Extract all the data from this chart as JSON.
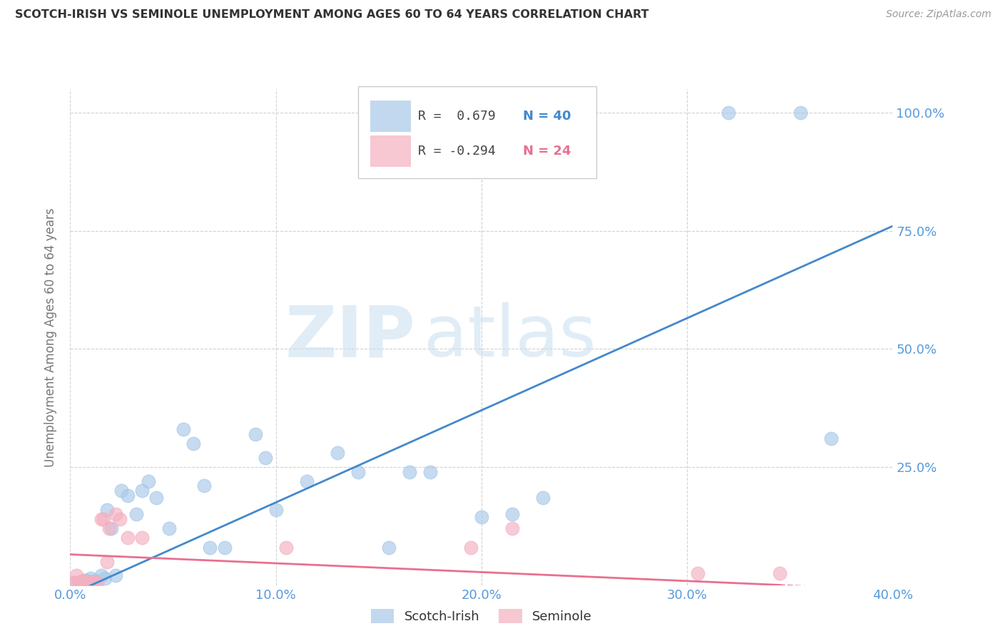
{
  "title": "SCOTCH-IRISH VS SEMINOLE UNEMPLOYMENT AMONG AGES 60 TO 64 YEARS CORRELATION CHART",
  "source": "Source: ZipAtlas.com",
  "ylabel": "Unemployment Among Ages 60 to 64 years",
  "x_min": 0.0,
  "x_max": 0.4,
  "y_min": 0.0,
  "y_max": 1.05,
  "x_ticks": [
    0.0,
    0.1,
    0.2,
    0.3,
    0.4
  ],
  "x_tick_labels": [
    "0.0%",
    "10.0%",
    "20.0%",
    "30.0%",
    "40.0%"
  ],
  "y_ticks": [
    0.25,
    0.5,
    0.75,
    1.0
  ],
  "y_tick_labels": [
    "25.0%",
    "50.0%",
    "75.0%",
    "100.0%"
  ],
  "scotch_irish_color": "#a8c8e8",
  "seminole_color": "#f4b0c0",
  "trend_scotch_color": "#4488cc",
  "trend_seminole_color": "#e87090",
  "legend_r_scotch": "R =  0.679",
  "legend_n_scotch": "N = 40",
  "legend_r_seminole": "R = -0.294",
  "legend_n_seminole": "N = 24",
  "watermark_zip": "ZIP",
  "watermark_atlas": "atlas",
  "scotch_irish_points": [
    [
      0.002,
      0.005
    ],
    [
      0.004,
      0.005
    ],
    [
      0.006,
      0.005
    ],
    [
      0.007,
      0.01
    ],
    [
      0.008,
      0.01
    ],
    [
      0.01,
      0.005
    ],
    [
      0.01,
      0.015
    ],
    [
      0.012,
      0.01
    ],
    [
      0.015,
      0.02
    ],
    [
      0.017,
      0.015
    ],
    [
      0.018,
      0.16
    ],
    [
      0.02,
      0.12
    ],
    [
      0.022,
      0.02
    ],
    [
      0.025,
      0.2
    ],
    [
      0.028,
      0.19
    ],
    [
      0.032,
      0.15
    ],
    [
      0.035,
      0.2
    ],
    [
      0.038,
      0.22
    ],
    [
      0.042,
      0.185
    ],
    [
      0.048,
      0.12
    ],
    [
      0.055,
      0.33
    ],
    [
      0.06,
      0.3
    ],
    [
      0.065,
      0.21
    ],
    [
      0.068,
      0.08
    ],
    [
      0.075,
      0.08
    ],
    [
      0.09,
      0.32
    ],
    [
      0.095,
      0.27
    ],
    [
      0.1,
      0.16
    ],
    [
      0.115,
      0.22
    ],
    [
      0.13,
      0.28
    ],
    [
      0.14,
      0.24
    ],
    [
      0.155,
      0.08
    ],
    [
      0.165,
      0.24
    ],
    [
      0.175,
      0.24
    ],
    [
      0.2,
      0.145
    ],
    [
      0.215,
      0.15
    ],
    [
      0.23,
      0.185
    ],
    [
      0.32,
      1.0
    ],
    [
      0.355,
      1.0
    ],
    [
      0.37,
      0.31
    ]
  ],
  "seminole_points": [
    [
      0.002,
      0.005
    ],
    [
      0.003,
      0.02
    ],
    [
      0.004,
      0.005
    ],
    [
      0.005,
      0.005
    ],
    [
      0.006,
      0.01
    ],
    [
      0.007,
      0.005
    ],
    [
      0.008,
      0.005
    ],
    [
      0.009,
      0.005
    ],
    [
      0.01,
      0.005
    ],
    [
      0.012,
      0.005
    ],
    [
      0.013,
      0.005
    ],
    [
      0.015,
      0.14
    ],
    [
      0.016,
      0.14
    ],
    [
      0.018,
      0.05
    ],
    [
      0.019,
      0.12
    ],
    [
      0.022,
      0.15
    ],
    [
      0.024,
      0.14
    ],
    [
      0.028,
      0.1
    ],
    [
      0.035,
      0.1
    ],
    [
      0.105,
      0.08
    ],
    [
      0.195,
      0.08
    ],
    [
      0.215,
      0.12
    ],
    [
      0.305,
      0.025
    ],
    [
      0.345,
      0.025
    ]
  ],
  "trend_scotch_x0": 0.0,
  "trend_scotch_y0": -0.02,
  "trend_scotch_x1": 0.4,
  "trend_scotch_y1": 0.76,
  "trend_seminole_x0": 0.0,
  "trend_seminole_y0": 0.065,
  "trend_seminole_x1": 0.4,
  "trend_seminole_y1": -0.01
}
